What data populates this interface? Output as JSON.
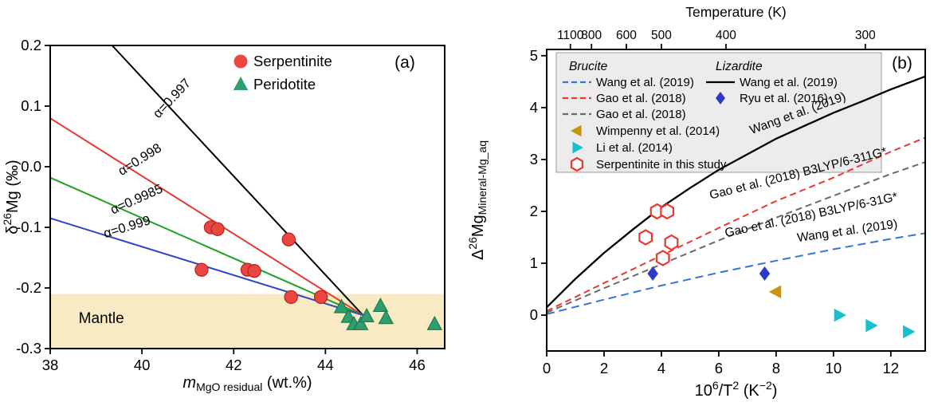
{
  "figure": {
    "background": "#ffffff"
  },
  "chart_data": [
    {
      "id": "panel_a",
      "type": "scatter",
      "panel_label": "(a)",
      "xlim": [
        38,
        46.6
      ],
      "ylim": [
        -0.3,
        0.2
      ],
      "xticks": [
        {
          "value": 38,
          "label": "38"
        },
        {
          "value": 40,
          "label": "40"
        },
        {
          "value": 42,
          "label": "42"
        },
        {
          "value": 44,
          "label": "44"
        },
        {
          "value": 46,
          "label": "46"
        }
      ],
      "yticks": [
        {
          "value": 0.2,
          "label": "0.2"
        },
        {
          "value": 0.1,
          "label": "0.1"
        },
        {
          "value": 0.0,
          "label": "0.0"
        },
        {
          "value": -0.1,
          "label": "-0.1"
        },
        {
          "value": -0.2,
          "label": "-0.2"
        },
        {
          "value": -0.3,
          "label": "-0.3"
        }
      ],
      "xlabel_parts": [
        {
          "t": "m",
          "i": true
        },
        {
          "t": "MgO residual",
          "sub": true
        },
        {
          "t": " (wt.%)"
        }
      ],
      "ylabel_parts": [
        {
          "t": "δ"
        },
        {
          "t": "26",
          "sup": true
        },
        {
          "t": "Mg (‰)"
        }
      ],
      "mantle_band": {
        "label": "Mantle",
        "y_top": -0.21,
        "y_bottom": -0.3,
        "color": "#f8eac2",
        "label_x": 38.62,
        "label_y": -0.258
      },
      "fractionation_lines": [
        {
          "label": "α=0.997",
          "color": "#000000",
          "points": [
            [
              39.35,
              0.2
            ],
            [
              44.82,
              -0.245
            ]
          ],
          "label_x": 40.72,
          "label_y": 0.108,
          "label_angle": -47
        },
        {
          "label": "α=0.998",
          "color": "#e8392f",
          "points": [
            [
              38.0,
              0.08
            ],
            [
              44.82,
              -0.245
            ]
          ],
          "label_x": 40.0,
          "label_y": 0.006,
          "label_angle": -32
        },
        {
          "label": "α=0.9985",
          "color": "#1ea322",
          "points": [
            [
              38.0,
              -0.018
            ],
            [
              44.82,
              -0.245
            ]
          ],
          "label_x": 39.92,
          "label_y": -0.06,
          "label_angle": -24
        },
        {
          "label": "α=0.999",
          "color": "#2946c8",
          "points": [
            [
              38.0,
              -0.085
            ],
            [
              44.82,
              -0.245
            ]
          ],
          "label_x": 39.7,
          "label_y": -0.106,
          "label_angle": -17
        }
      ],
      "series": [
        {
          "name": "Serpentinite",
          "marker": "circle",
          "color": "#e94740",
          "edge": "#b5221f",
          "points": [
            [
              41.5,
              -0.1
            ],
            [
              41.65,
              -0.103
            ],
            [
              43.2,
              -0.12
            ],
            [
              41.3,
              -0.17
            ],
            [
              42.3,
              -0.17
            ],
            [
              42.45,
              -0.172
            ],
            [
              43.25,
              -0.215
            ],
            [
              43.9,
              -0.215
            ]
          ]
        },
        {
          "name": "Peridotite",
          "marker": "triangle-up",
          "color": "#2f9e6e",
          "edge": "#1d7a50",
          "points": [
            [
              44.35,
              -0.232
            ],
            [
              44.5,
              -0.248
            ],
            [
              44.62,
              -0.26
            ],
            [
              44.77,
              -0.26
            ],
            [
              44.9,
              -0.247
            ],
            [
              45.2,
              -0.23
            ],
            [
              45.32,
              -0.25
            ],
            [
              46.38,
              -0.26
            ]
          ]
        }
      ],
      "legend": {
        "items": [
          {
            "label": "Serpentinite",
            "marker": "circle",
            "color": "#e94740"
          },
          {
            "label": "Peridotite",
            "marker": "triangle-up",
            "color": "#2f9e6e"
          }
        ]
      }
    },
    {
      "id": "panel_b",
      "type": "line+scatter",
      "panel_label": "(b)",
      "xlim": [
        0,
        13.2
      ],
      "ylim": [
        -0.69,
        5.12
      ],
      "xticks": [
        {
          "value": 0,
          "label": "0"
        },
        {
          "value": 2,
          "label": "2"
        },
        {
          "value": 4,
          "label": "4"
        },
        {
          "value": 6,
          "label": "6"
        },
        {
          "value": 8,
          "label": "8"
        },
        {
          "value": 10,
          "label": "10"
        },
        {
          "value": 12,
          "label": "12"
        }
      ],
      "yticks": [
        {
          "value": 0,
          "label": "0"
        },
        {
          "value": 1,
          "label": "1"
        },
        {
          "value": 2,
          "label": "2"
        },
        {
          "value": 3,
          "label": "3"
        },
        {
          "value": 4,
          "label": "4"
        },
        {
          "value": 5,
          "label": "5"
        }
      ],
      "top_axis": {
        "title": "Temperature (K)",
        "ticks": [
          {
            "label": "1100",
            "value": 1100
          },
          {
            "label": "800",
            "value": 800
          },
          {
            "label": "600",
            "value": 600
          },
          {
            "label": "500",
            "value": 500
          },
          {
            "label": "400",
            "value": 400
          },
          {
            "label": "300",
            "value": 300
          }
        ]
      },
      "xlabel_parts": [
        {
          "t": "10"
        },
        {
          "t": "6",
          "sup": true
        },
        {
          "t": "/T"
        },
        {
          "t": "2",
          "sup": true
        },
        {
          "t": " (K"
        },
        {
          "t": "−2",
          "sup": true
        },
        {
          "t": ")"
        }
      ],
      "ylabel_parts": [
        {
          "t": "Δ"
        },
        {
          "t": "26",
          "sup": true
        },
        {
          "t": "Mg"
        },
        {
          "t": "Mineral-Mg_aq",
          "sub": true
        }
      ],
      "curves": [
        {
          "name": "Wang et al. (2019) Lizardite",
          "color": "#000000",
          "dash": null,
          "width": 2.3,
          "points": [
            [
              0,
              0.15
            ],
            [
              1,
              0.7
            ],
            [
              2,
              1.2
            ],
            [
              3,
              1.65
            ],
            [
              4,
              2.08
            ],
            [
              5,
              2.45
            ],
            [
              6,
              2.8
            ],
            [
              7,
              3.1
            ],
            [
              8,
              3.4
            ],
            [
              9,
              3.65
            ],
            [
              10,
              3.9
            ],
            [
              11,
              4.12
            ],
            [
              12,
              4.35
            ],
            [
              13.2,
              4.6
            ]
          ]
        },
        {
          "name": "Gao et al. (2018) B3LYP/6-311G*",
          "color": "#e8392f",
          "dash": "8 5",
          "width": 2,
          "points": [
            [
              0,
              0.08
            ],
            [
              2,
              0.62
            ],
            [
              4,
              1.15
            ],
            [
              6,
              1.68
            ],
            [
              8,
              2.2
            ],
            [
              10,
              2.65
            ],
            [
              12,
              3.15
            ],
            [
              13.2,
              3.42
            ]
          ]
        },
        {
          "name": "Gao et al. (2018) B3LYP/6-31G*",
          "color": "#6a6a6a",
          "dash": "8 5",
          "width": 2,
          "points": [
            [
              0,
              0.05
            ],
            [
              2,
              0.52
            ],
            [
              4,
              0.98
            ],
            [
              6,
              1.44
            ],
            [
              8,
              1.88
            ],
            [
              10,
              2.3
            ],
            [
              12,
              2.72
            ],
            [
              13.2,
              2.95
            ]
          ]
        },
        {
          "name": "Wang et al. (2019) Brucite",
          "color": "#3575d3",
          "dash": "10 6",
          "width": 2,
          "points": [
            [
              0,
              0.02
            ],
            [
              2,
              0.3
            ],
            [
              4,
              0.57
            ],
            [
              6,
              0.82
            ],
            [
              8,
              1.05
            ],
            [
              10,
              1.27
            ],
            [
              12,
              1.47
            ],
            [
              13.2,
              1.58
            ]
          ]
        }
      ],
      "curve_labels": [
        {
          "text": "Wang et al. (2019)",
          "x": 8.8,
          "y": 3.82,
          "angle": -20
        },
        {
          "text": "Gao et al. (2018) B3LYP/6-311G*",
          "x": 8.8,
          "y": 2.66,
          "angle": -14
        },
        {
          "text": "Gao et al. (2018) B3LYP/6-31G*",
          "x": 9.25,
          "y": 1.86,
          "angle": -12
        },
        {
          "text": "Wang et al. (2019)",
          "x": 10.5,
          "y": 1.55,
          "angle": -8
        }
      ],
      "series": [
        {
          "name": "Serpentinite in this study",
          "marker": "hexagon-open",
          "color": "#e8392f",
          "points": [
            [
              3.85,
              2.0
            ],
            [
              4.2,
              2.0
            ],
            [
              3.45,
              1.5
            ],
            [
              4.35,
              1.4
            ],
            [
              4.05,
              1.1
            ]
          ]
        },
        {
          "name": "Ryu et al. (2016)",
          "marker": "diamond",
          "color": "#2d3bc4",
          "points": [
            [
              3.7,
              0.8
            ],
            [
              7.6,
              0.8
            ]
          ]
        },
        {
          "name": "Wimpenny et al. (2014)",
          "marker": "triangle-left",
          "color": "#c8940a",
          "points": [
            [
              8.0,
              0.45
            ]
          ]
        },
        {
          "name": "Li et al. (2014)",
          "marker": "triangle-right",
          "color": "#17c0cc",
          "points": [
            [
              10.2,
              0.0
            ],
            [
              11.3,
              -0.2
            ],
            [
              12.6,
              -0.32
            ]
          ]
        }
      ],
      "legend": {
        "bg": "#ececec",
        "border": "#9a9a9a",
        "columns": [
          {
            "header": "Brucite",
            "items": [
              {
                "label": "Wang et al. (2019)",
                "swatch": "line",
                "color": "#3575d3",
                "dash": true
              },
              {
                "label": "Gao et al. (2018)",
                "swatch": "line",
                "color": "#e8392f",
                "dash": true
              },
              {
                "label": "Gao et al. (2018)",
                "swatch": "line",
                "color": "#6a6a6a",
                "dash": true
              },
              {
                "label": "Wimpenny et al. (2014)",
                "swatch": "marker",
                "marker": "triangle-left",
                "color": "#c8940a"
              },
              {
                "label": "Li et al. (2014)",
                "swatch": "marker",
                "marker": "triangle-right",
                "color": "#17c0cc"
              },
              {
                "label": "Serpentinite in this study",
                "swatch": "marker",
                "marker": "hexagon-open",
                "color": "#e8392f"
              }
            ]
          },
          {
            "header": "Lizardite",
            "items": [
              {
                "label": "Wang et al. (2019)",
                "swatch": "line",
                "color": "#000000",
                "dash": false
              },
              {
                "label": "Ryu et al. (2016)",
                "swatch": "marker",
                "marker": "diamond",
                "color": "#2d3bc4"
              }
            ]
          }
        ]
      }
    }
  ]
}
